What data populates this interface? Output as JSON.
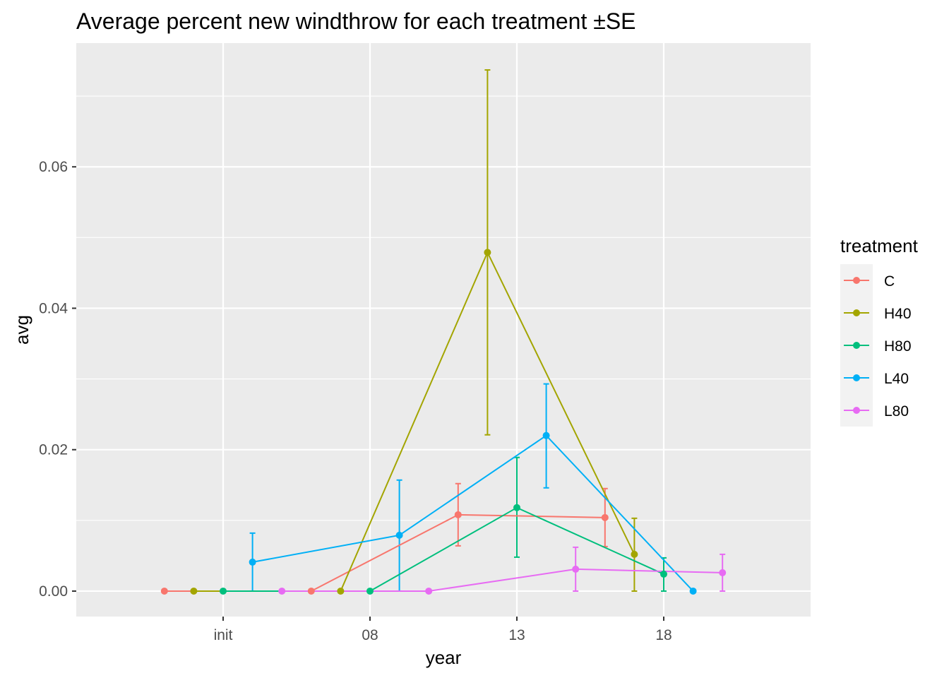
{
  "chart_data": {
    "type": "line",
    "title": "Average percent new windthrow for each treatment ±SE",
    "xlabel": "year",
    "ylabel": "avg",
    "categories": [
      "init",
      "08",
      "13",
      "18"
    ],
    "ylim": [
      -0.0036,
      0.0775
    ],
    "y_ticks": [
      0.0,
      0.02,
      0.04,
      0.06
    ],
    "y_tick_labels": [
      "0.00",
      "0.02",
      "0.04",
      "0.06"
    ],
    "grid": true,
    "legend": {
      "title": "treatment",
      "position": "right"
    },
    "error_bars": "±SE",
    "series": [
      {
        "name": "C",
        "color": "#F8766D",
        "values": [
          0.0,
          0.0,
          0.0108,
          0.0104
        ],
        "lower": [
          0.0,
          0.0,
          0.0064,
          0.0063
        ],
        "upper": [
          0.0,
          0.0,
          0.0152,
          0.0145
        ]
      },
      {
        "name": "H40",
        "color": "#A3A500",
        "values": [
          0.0,
          0.0,
          0.0479,
          0.0052
        ],
        "lower": [
          0.0,
          0.0,
          0.0221,
          0.0
        ],
        "upper": [
          0.0,
          0.0,
          0.0737,
          0.0103
        ]
      },
      {
        "name": "H80",
        "color": "#00BF7D",
        "values": [
          0.0,
          0.0,
          0.0118,
          0.0024
        ],
        "lower": [
          0.0,
          0.0,
          0.0048,
          0.0
        ],
        "upper": [
          0.0,
          0.0,
          0.0189,
          0.0047
        ]
      },
      {
        "name": "L40",
        "color": "#00B0F6",
        "values": [
          0.0041,
          0.0079,
          0.022,
          0.0
        ],
        "lower": [
          0.0,
          0.0,
          0.0146,
          0.0
        ],
        "upper": [
          0.0082,
          0.0157,
          0.0293,
          0.0
        ]
      },
      {
        "name": "L80",
        "color": "#E76BF3",
        "values": [
          0.0,
          0.0,
          0.0031,
          0.0026
        ],
        "lower": [
          0.0,
          0.0,
          0.0,
          0.0
        ],
        "upper": [
          0.0,
          0.0,
          0.0062,
          0.0052
        ]
      }
    ]
  },
  "colors": {
    "panel_background": "#EBEBEB",
    "grid_major": "#FFFFFF",
    "legend_key_background": "#F2F2F2"
  }
}
